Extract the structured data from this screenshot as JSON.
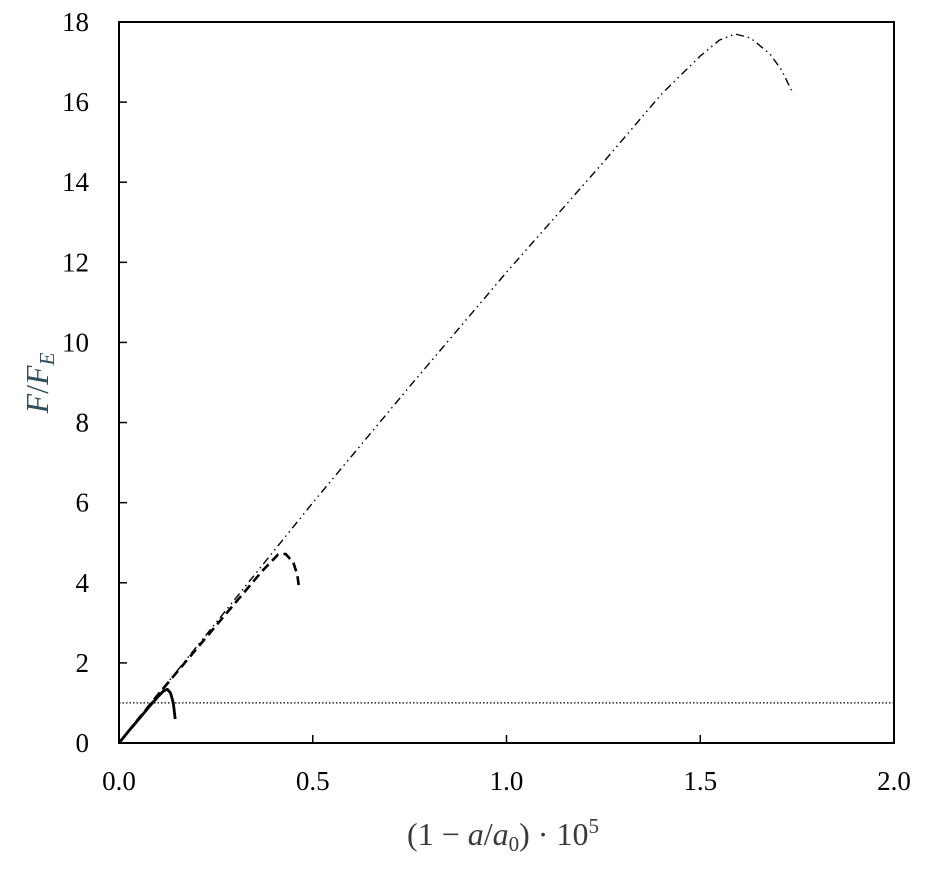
{
  "chart_data": {
    "type": "line",
    "title": "",
    "xlabel": "(1 − a/a0) · 10^5",
    "ylabel": "F/FE",
    "xlim": [
      0,
      2.0
    ],
    "ylim": [
      0,
      18
    ],
    "x_ticks": [
      "0.0",
      "0.5",
      "1.0",
      "1.5",
      "2.0"
    ],
    "y_ticks": [
      "0",
      "2",
      "4",
      "6",
      "8",
      "10",
      "12",
      "14",
      "16",
      "18"
    ],
    "grid": false,
    "legend": "none",
    "series": [
      {
        "style": "solid",
        "color": "#000000",
        "points": [
          [
            0,
            0
          ],
          [
            0.02,
            0.24
          ],
          [
            0.04,
            0.47
          ],
          [
            0.06,
            0.7
          ],
          [
            0.08,
            0.93
          ],
          [
            0.1,
            1.15
          ],
          [
            0.115,
            1.3
          ],
          [
            0.125,
            1.34
          ],
          [
            0.133,
            1.25
          ],
          [
            0.14,
            1.0
          ],
          [
            0.145,
            0.6
          ]
        ]
      },
      {
        "style": "dashed",
        "color": "#000000",
        "points": [
          [
            0,
            0
          ],
          [
            0.1,
            1.2
          ],
          [
            0.2,
            2.35
          ],
          [
            0.3,
            3.5
          ],
          [
            0.37,
            4.3
          ],
          [
            0.41,
            4.7
          ],
          [
            0.43,
            4.72
          ],
          [
            0.45,
            4.5
          ],
          [
            0.46,
            4.2
          ],
          [
            0.465,
            3.85
          ]
        ]
      },
      {
        "style": "dash-dot-dot",
        "color": "#000000",
        "points": [
          [
            0,
            0
          ],
          [
            0.25,
            3.0
          ],
          [
            0.5,
            6.0
          ],
          [
            0.75,
            8.9
          ],
          [
            1.0,
            11.75
          ],
          [
            1.25,
            14.5
          ],
          [
            1.4,
            16.2
          ],
          [
            1.5,
            17.15
          ],
          [
            1.55,
            17.55
          ],
          [
            1.59,
            17.7
          ],
          [
            1.63,
            17.6
          ],
          [
            1.68,
            17.2
          ],
          [
            1.71,
            16.8
          ],
          [
            1.74,
            16.2
          ]
        ]
      },
      {
        "style": "dotted",
        "color": "#000000",
        "points": [
          [
            0,
            1
          ],
          [
            2.0,
            1
          ]
        ]
      }
    ]
  }
}
